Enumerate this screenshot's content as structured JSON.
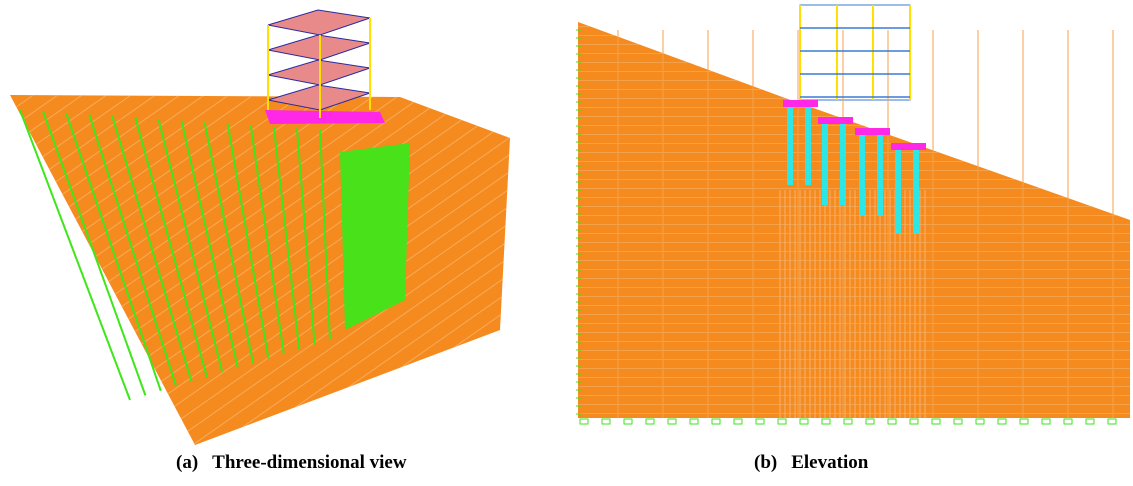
{
  "figure": {
    "panels": [
      {
        "label": "(a)",
        "caption": "Three-dimensional view"
      },
      {
        "label": "(b)",
        "caption": "Elevation"
      }
    ]
  }
}
